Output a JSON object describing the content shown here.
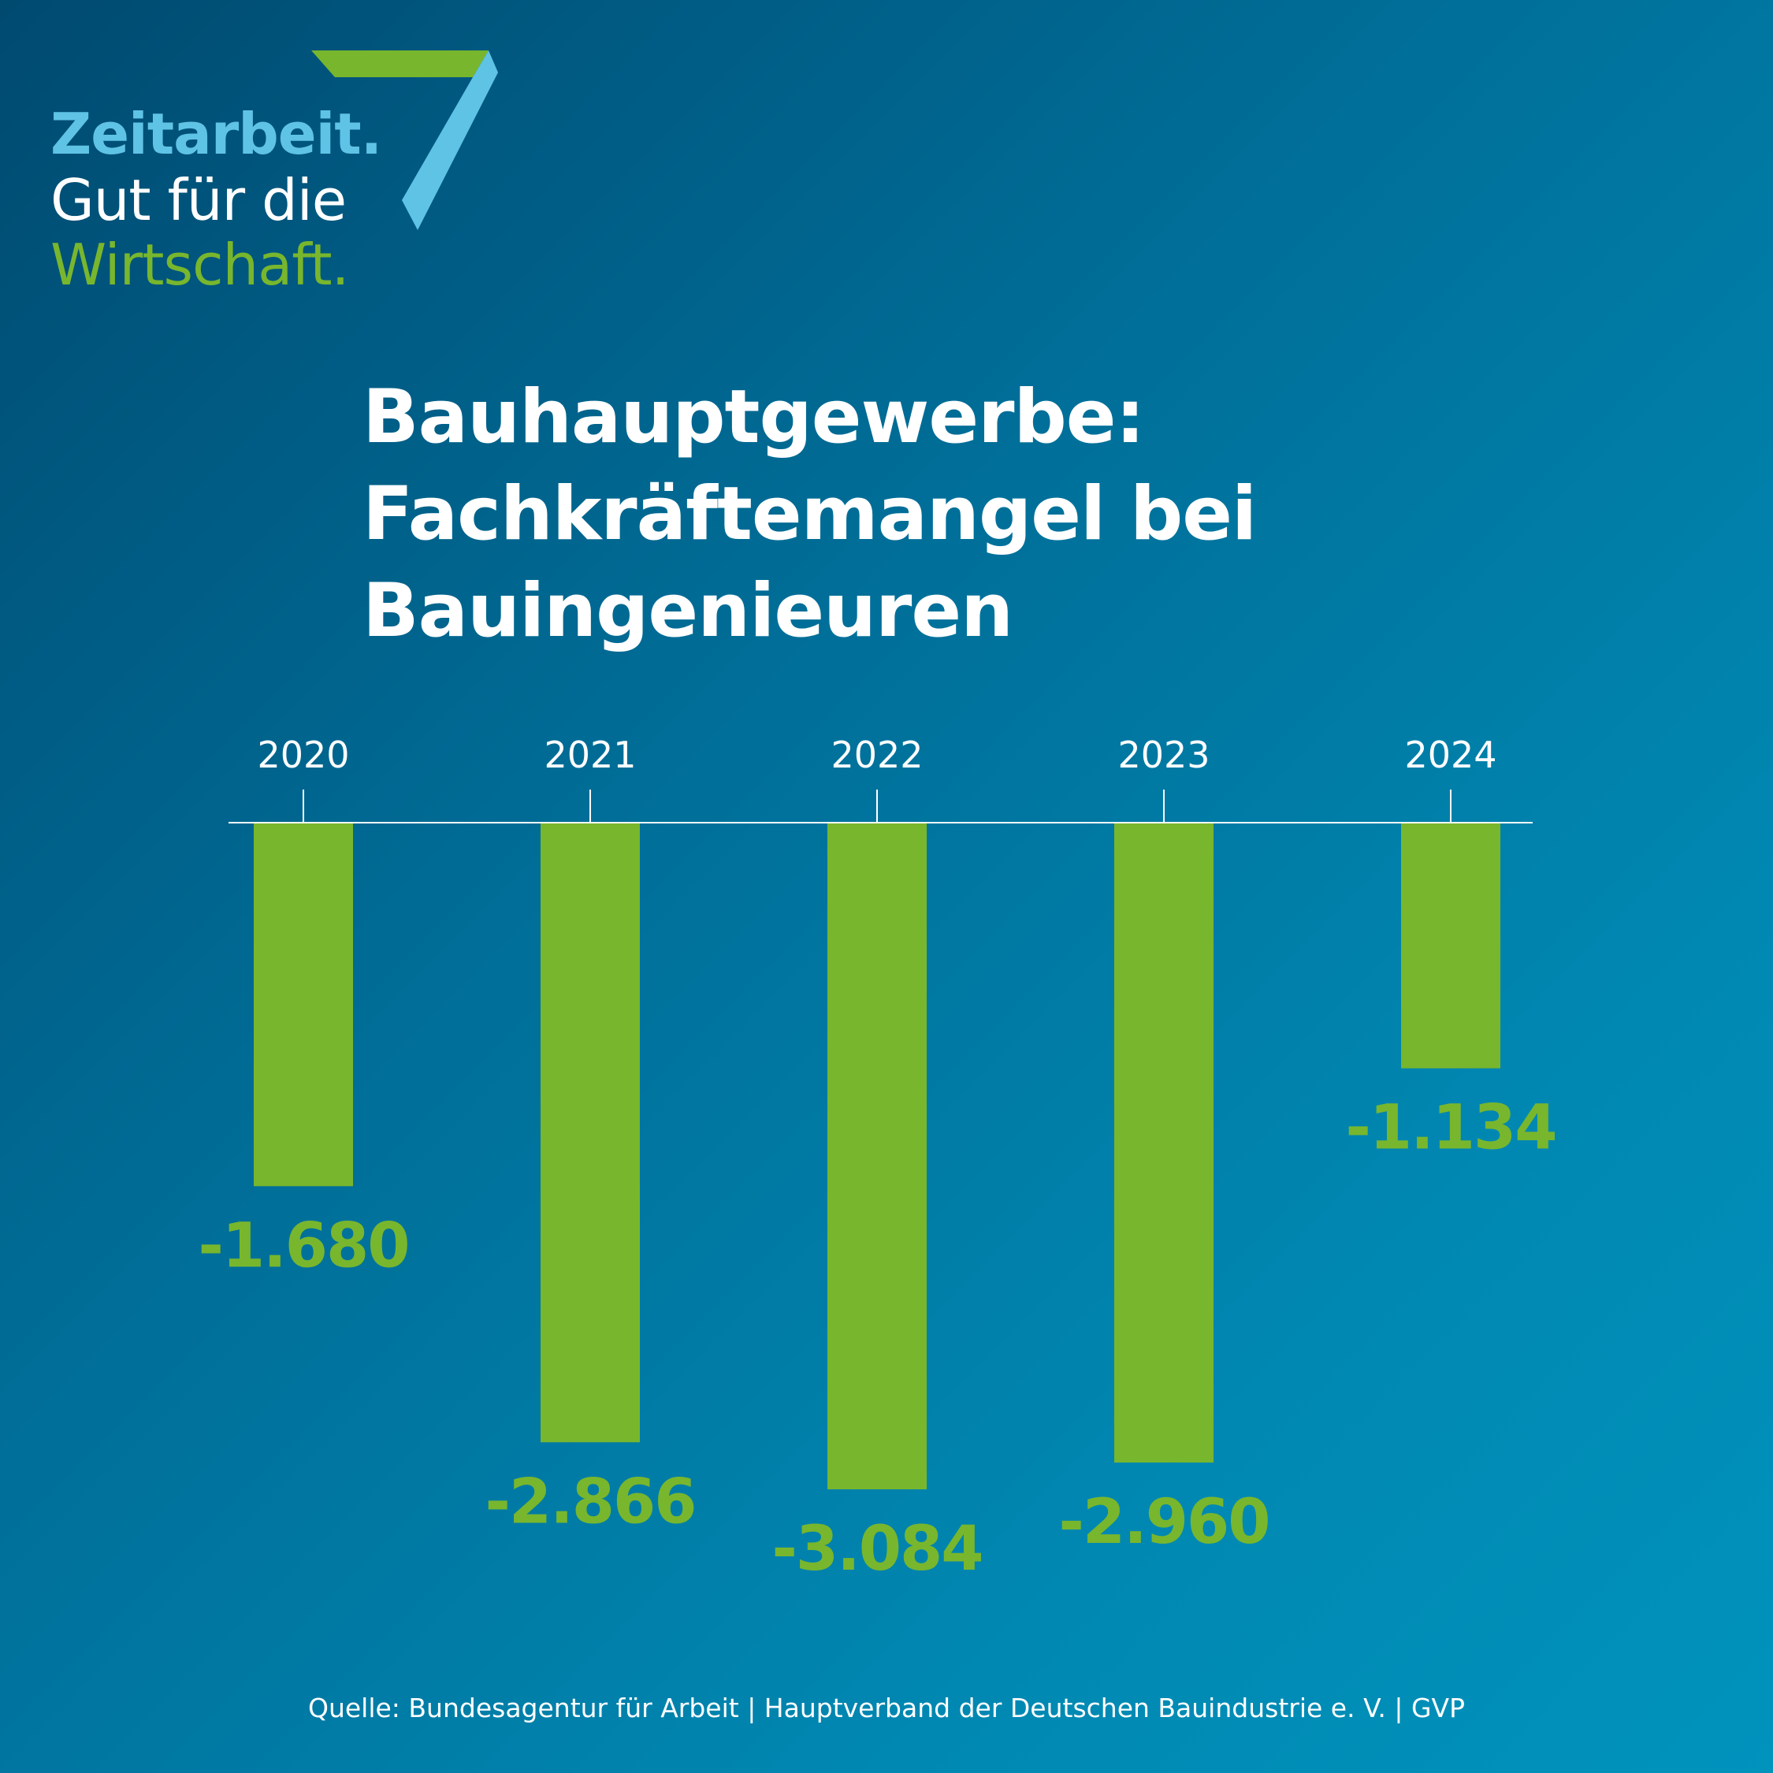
{
  "logo": {
    "line1": "Zeitarbeit.",
    "line2": "Gut für die",
    "line3": "Wirtschaft.",
    "icon": "seven-mark-icon",
    "colors": {
      "blue": "#5fc3e6",
      "green": "#78b62d"
    }
  },
  "title_lines": [
    "Bauhauptgewerbe:",
    "Fachkräftemangel bei",
    "Bauingenieuren"
  ],
  "source": "Quelle: Bundesagentur für Arbeit | Hauptverband der Deutschen Bauindustrie e. V. | GVP",
  "chart_data": {
    "type": "bar",
    "orientation": "vertical-negative",
    "categories": [
      "2020",
      "2021",
      "2022",
      "2023",
      "2024"
    ],
    "values": [
      -1680,
      -2866,
      -3084,
      -2960,
      -1134
    ],
    "value_labels": [
      "-1.680",
      "-2.866",
      "-3.084",
      "-2.960",
      "-1.134"
    ],
    "title": "Bauhauptgewerbe: Fachkräftemangel bei Bauingenieuren",
    "xlabel": "",
    "ylabel": "",
    "ylim": [
      -3084,
      0
    ],
    "grid": false,
    "legend": "none",
    "bar_color": "#78b62d",
    "label_color": "#78b62d",
    "axis_color": "#ffffff"
  }
}
